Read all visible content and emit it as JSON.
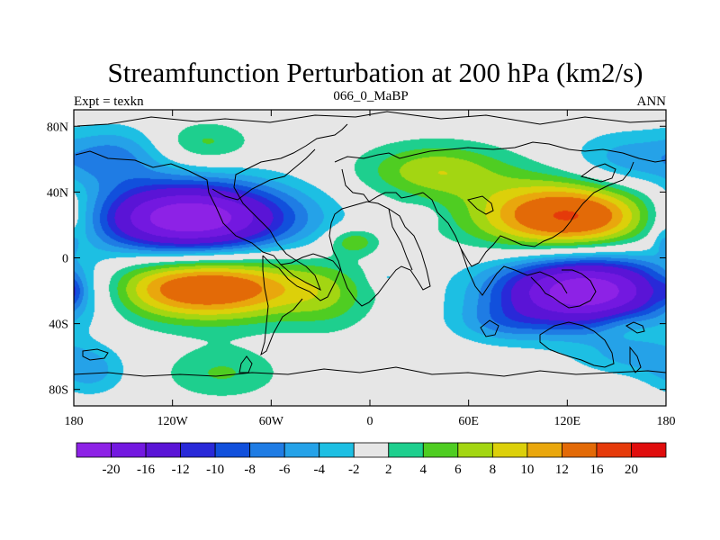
{
  "chart_data": {
    "type": "heatmap",
    "title": "Streamfunction Perturbation at 200 hPa (km2/s)",
    "left_label": "Expt = texkn",
    "center_label": "066_0_MaBP",
    "right_label": "ANN",
    "x_ticks": [
      {
        "value": -180,
        "label": "180"
      },
      {
        "value": -120,
        "label": "120W"
      },
      {
        "value": -60,
        "label": "60W"
      },
      {
        "value": 0,
        "label": "0"
      },
      {
        "value": 60,
        "label": "60E"
      },
      {
        "value": 120,
        "label": "120E"
      },
      {
        "value": 180,
        "label": "180"
      }
    ],
    "y_ticks": [
      {
        "value": 80,
        "label": "80N"
      },
      {
        "value": 40,
        "label": "40N"
      },
      {
        "value": 0,
        "label": "0"
      },
      {
        "value": -40,
        "label": "40S"
      },
      {
        "value": -80,
        "label": "80S"
      }
    ],
    "xlim": [
      -180,
      180
    ],
    "ylim": [
      -90,
      90
    ],
    "colorbar": {
      "colors": [
        "#8d22e6",
        "#7318e0",
        "#5a14d6",
        "#2929d8",
        "#1150dc",
        "#1f7ce4",
        "#25a2e8",
        "#1dbfe3",
        "#e6e6e6",
        "#1ecf8e",
        "#4fcd22",
        "#a3d612",
        "#dcd00a",
        "#e9a70d",
        "#e36a07",
        "#e53a0a",
        "#e00d0d"
      ],
      "labels": [
        "-20",
        "-16",
        "-12",
        "-10",
        "-8",
        "-6",
        "-4",
        "-2",
        "2",
        "4",
        "6",
        "8",
        "10",
        "12",
        "16",
        "20"
      ]
    },
    "blobs": [
      {
        "lon": -110,
        "lat": 24,
        "rlon": 62,
        "rlat": 22,
        "amp": -24
      },
      {
        "lon": -155,
        "lat": 62,
        "rlon": 30,
        "rlat": 18,
        "amp": -6
      },
      {
        "lon": -170,
        "lat": -70,
        "rlon": 22,
        "rlat": 14,
        "amp": -4.5
      },
      {
        "lon": -100,
        "lat": -18,
        "rlon": 65,
        "rlat": 20,
        "amp": 16
      },
      {
        "lon": -100,
        "lat": 70,
        "rlon": 28,
        "rlat": 13,
        "amp": 4.5
      },
      {
        "lon": -90,
        "lat": -70,
        "rlon": 36,
        "rlat": 16,
        "amp": 4.2
      },
      {
        "lon": -25,
        "lat": -25,
        "rlon": 26,
        "rlat": 22,
        "amp": 3.2
      },
      {
        "lon": -10,
        "lat": 10,
        "rlon": 15,
        "rlat": 8,
        "amp": 6
      },
      {
        "lon": 40,
        "lat": 53,
        "rlon": 45,
        "rlat": 17,
        "amp": 7.5
      },
      {
        "lon": 122,
        "lat": 25,
        "rlon": 58,
        "rlat": 22,
        "amp": 17
      },
      {
        "lon": 155,
        "lat": 58,
        "rlon": 35,
        "rlat": 18,
        "amp": -5.5
      },
      {
        "lon": 132,
        "lat": -20,
        "rlon": 55,
        "rlat": 22,
        "amp": -24
      },
      {
        "lon": 80,
        "lat": -40,
        "rlon": 30,
        "rlat": 12,
        "amp": -4
      },
      {
        "lon": 160,
        "lat": -60,
        "rlon": 35,
        "rlat": 12,
        "amp": -4
      },
      {
        "lon": 155,
        "lat": -40,
        "rlon": 18,
        "rlat": 10,
        "amp": 2.6
      },
      {
        "lon": 30,
        "lat": 25,
        "rlon": 10,
        "rlat": 6,
        "amp": -3
      },
      {
        "lon": 10,
        "lat": -12,
        "rlon": 9,
        "rlat": 6,
        "amp": -3
      },
      {
        "lon": 178,
        "lat": 10,
        "rlon": 6,
        "rlat": 8,
        "amp": -3
      },
      {
        "lon": -180,
        "lat": -20,
        "rlon": 6,
        "rlat": 8,
        "amp": -3
      }
    ]
  }
}
